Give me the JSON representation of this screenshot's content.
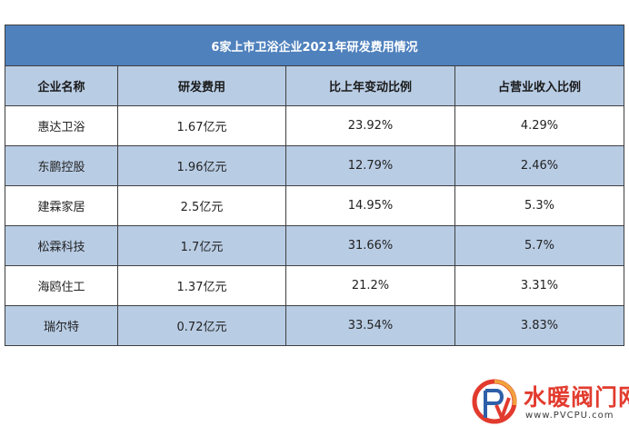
{
  "table": {
    "title": "6家上市卫浴企业2021年研发费用情况",
    "headers": [
      "企业名称",
      "研发费用",
      "比上年变动比例",
      "占营业收入比例"
    ],
    "rows": [
      [
        "惠达卫浴",
        "1.67亿元",
        "23.92%",
        "4.29%"
      ],
      [
        "东鹏控股",
        "1.96亿元",
        "12.79%",
        "2.46%"
      ],
      [
        "建霖家居",
        "2.5亿元",
        "14.95%",
        "5.3%"
      ],
      [
        "松霖科技",
        "1.7亿元",
        "31.66%",
        "5.7%"
      ],
      [
        "海鸥住工",
        "1.37亿元",
        "21.2%",
        "3.31%"
      ],
      [
        "瑞尔特",
        "0.72亿元",
        "33.54%",
        "3.83%"
      ]
    ]
  },
  "colors": {
    "title_bg": "#4f81bd",
    "header_bg": "#b8cce4",
    "alt_row_bg": "#b8cce4",
    "border": "#3f3f3f",
    "watermark_red": "#e23b2e"
  },
  "watermark": {
    "brand": "水暖阀门网",
    "url": "www.PVCPU.com",
    "logo_icon": "pv-logo-icon"
  }
}
